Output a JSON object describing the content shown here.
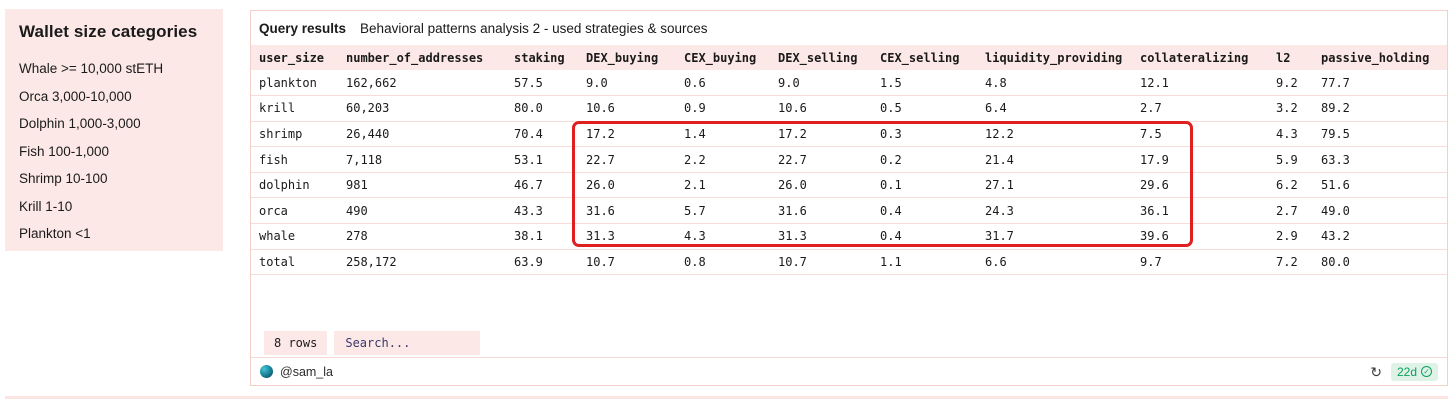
{
  "sidebar": {
    "title": "Wallet size categories",
    "items": [
      "Whale >= 10,000 stETH",
      "Orca 3,000-10,000",
      "Dolphin 1,000-3,000",
      "Fish 100-1,000",
      "Shrimp 10-100",
      "Krill 1-10",
      "Plankton <1"
    ]
  },
  "panel": {
    "title": "Query results",
    "subtitle": "Behavioral patterns analysis 2 - used strategies & sources",
    "table": {
      "columns": [
        "user_size",
        "number_of_addresses",
        "staking",
        "DEX_buying",
        "CEX_buying",
        "DEX_selling",
        "CEX_selling",
        "liquidity_providing",
        "collateralizing",
        "l2",
        "passive_holding"
      ],
      "rows": [
        [
          "plankton",
          "162,662",
          "57.5",
          "9.0",
          "0.6",
          "9.0",
          "1.5",
          "4.8",
          "12.1",
          "9.2",
          "77.7"
        ],
        [
          "krill",
          "60,203",
          "80.0",
          "10.6",
          "0.9",
          "10.6",
          "0.5",
          "6.4",
          "2.7",
          "3.2",
          "89.2"
        ],
        [
          "shrimp",
          "26,440",
          "70.4",
          "17.2",
          "1.4",
          "17.2",
          "0.3",
          "12.2",
          "7.5",
          "4.3",
          "79.5"
        ],
        [
          "fish",
          "7,118",
          "53.1",
          "22.7",
          "2.2",
          "22.7",
          "0.2",
          "21.4",
          "17.9",
          "5.9",
          "63.3"
        ],
        [
          "dolphin",
          "981",
          "46.7",
          "26.0",
          "2.1",
          "26.0",
          "0.1",
          "27.1",
          "29.6",
          "6.2",
          "51.6"
        ],
        [
          "orca",
          "490",
          "43.3",
          "31.6",
          "5.7",
          "31.6",
          "0.4",
          "24.3",
          "36.1",
          "2.7",
          "49.0"
        ],
        [
          "whale",
          "278",
          "38.1",
          "31.3",
          "4.3",
          "31.3",
          "0.4",
          "31.7",
          "39.6",
          "2.9",
          "43.2"
        ],
        [
          "total",
          "258,172",
          "63.9",
          "10.7",
          "0.8",
          "10.7",
          "1.1",
          "6.6",
          "9.7",
          "7.2",
          "80.0"
        ]
      ],
      "highlight": {
        "rows": [
          "shrimp",
          "fish",
          "dolphin",
          "orca",
          "whale"
        ],
        "columns": [
          "DEX_buying",
          "CEX_buying",
          "DEX_selling",
          "CEX_selling",
          "liquidity_providing",
          "collateralizing"
        ]
      }
    },
    "row_count_label": "8 rows",
    "search_placeholder": "Search...",
    "footer": {
      "author": "@sam_la",
      "refresh_icon_glyph": "↻",
      "age_badge": "22d",
      "check_glyph": "✓"
    }
  },
  "colors": {
    "pink_bg": "#fce9e7",
    "row_divider": "#f9dcd8",
    "panel_border": "#f3cfc9",
    "highlight_red": "#e01f1f",
    "search_text": "#39386b",
    "badge_green": "#0ba05f",
    "badge_green_bg": "#def3e6"
  }
}
